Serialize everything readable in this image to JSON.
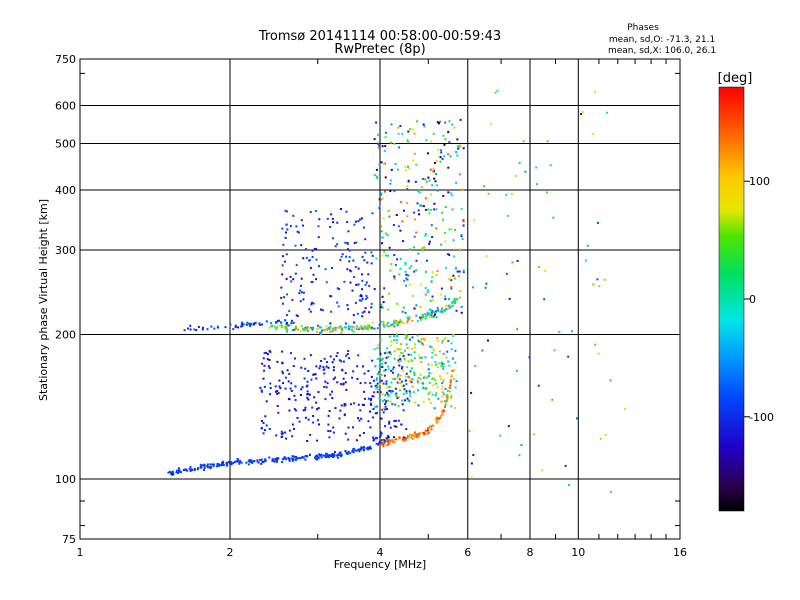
{
  "chart_data": {
    "type": "scatter",
    "title": "Tromsø 20141114 00:58:00-00:59:43",
    "subtitle": "RwPretec (8p)",
    "xlabel": "Frequency [MHz]",
    "ylabel": "Stationary phase Virtual Height [km]",
    "x_scale": "log",
    "y_scale": "log",
    "xlim": [
      1,
      16
    ],
    "ylim": [
      75,
      750
    ],
    "x_ticks": [
      1,
      2,
      4,
      6,
      8,
      10,
      16
    ],
    "x_tick_labels": [
      "1",
      "2",
      "4",
      "6",
      "8",
      "10",
      "16"
    ],
    "y_ticks": [
      75,
      100,
      200,
      300,
      400,
      500,
      600,
      750
    ],
    "y_tick_labels": [
      "75",
      "100",
      "200",
      "300",
      "400",
      "500",
      "600",
      "750"
    ],
    "grid": true,
    "info": {
      "heading": "Phases",
      "line1": "mean, sd,O: -71.3, 21.1",
      "line2": "mean, sd,X: 106.0, 26.1"
    },
    "colorbar": {
      "label": "[deg]",
      "range": [
        -180,
        180
      ],
      "ticks": [
        100,
        0,
        -100
      ],
      "tick_labels": [
        "100",
        "0",
        "-100"
      ]
    },
    "point_groups": [
      {
        "name": "lower trace",
        "x_range": [
          1.5,
          4.2
        ],
        "y_curve": [
          [
            1.5,
            103
          ],
          [
            2.0,
            108
          ],
          [
            2.6,
            110
          ],
          [
            3.2,
            112
          ],
          [
            3.8,
            116
          ],
          [
            4.2,
            122
          ]
        ],
        "spread": 0.02,
        "phase_range": [
          -100,
          -85
        ],
        "count": 260
      },
      {
        "name": "O-mode E-F1 band",
        "x_range": [
          2.3,
          4.6
        ],
        "y_range": [
          120,
          185
        ],
        "phase_range": [
          -125,
          -95
        ],
        "count": 320
      },
      {
        "name": "X-mode F cusp",
        "x_range": [
          4.0,
          5.6
        ],
        "y_curve": [
          [
            4.0,
            118
          ],
          [
            4.6,
            122
          ],
          [
            5.0,
            126
          ],
          [
            5.3,
            135
          ],
          [
            5.5,
            150
          ],
          [
            5.6,
            170
          ]
        ],
        "spread": 0.025,
        "phase_range": [
          110,
          165
        ],
        "count": 120
      },
      {
        "name": "mid F band",
        "x_range": [
          3.9,
          5.7
        ],
        "y_range": [
          140,
          200
        ],
        "phase_range": [
          -80,
          130
        ],
        "count": 260
      },
      {
        "name": "F layer trace",
        "x_range": [
          2.4,
          5.8
        ],
        "y_curve": [
          [
            2.4,
            208
          ],
          [
            3.0,
            205
          ],
          [
            3.6,
            206
          ],
          [
            4.2,
            210
          ],
          [
            4.8,
            216
          ],
          [
            5.4,
            225
          ],
          [
            5.8,
            240
          ]
        ],
        "spread": 0.025,
        "phase_range": [
          -90,
          140
        ],
        "count": 220
      },
      {
        "name": "spread F",
        "x_range": [
          3.9,
          5.9
        ],
        "y_range": [
          220,
          560
        ],
        "phase_range": [
          -170,
          150
        ],
        "count": 300
      },
      {
        "name": "upper cluster",
        "x_range": [
          2.5,
          3.9
        ],
        "y_range": [
          210,
          370
        ],
        "phase_range": [
          -125,
          -70
        ],
        "count": 170
      },
      {
        "name": "left F trace",
        "x_range": [
          1.6,
          2.7
        ],
        "y_curve": [
          [
            1.6,
            204
          ],
          [
            2.2,
            210
          ],
          [
            2.7,
            212
          ]
        ],
        "spread": 0.02,
        "phase_range": [
          -120,
          -70
        ],
        "count": 55
      },
      {
        "name": "high frequency echoes",
        "x_range": [
          6.0,
          12.5
        ],
        "y_range": [
          90,
          650
        ],
        "phase_range": [
          -160,
          150
        ],
        "count": 75
      }
    ]
  }
}
